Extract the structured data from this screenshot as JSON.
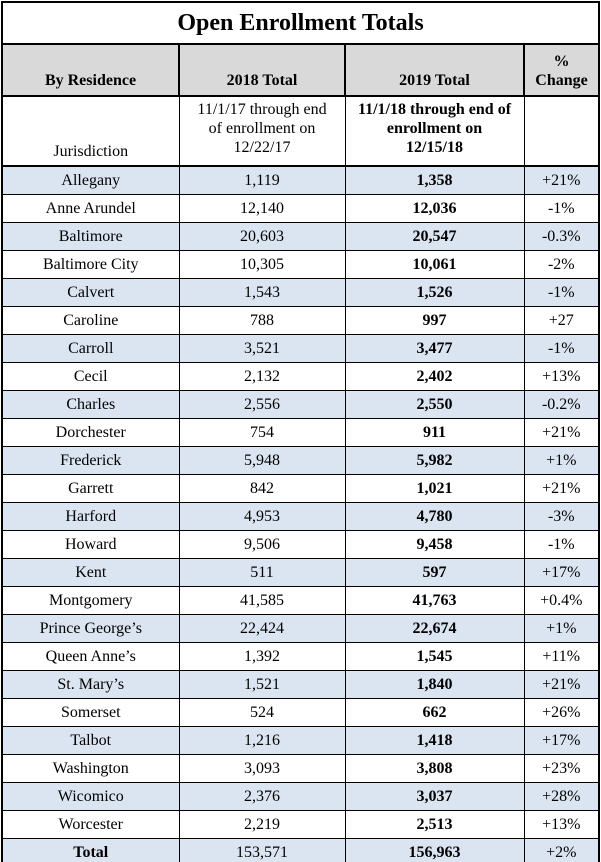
{
  "title": "Open Enrollment Totals",
  "columns": {
    "residence": "By Residence",
    "total_2018": "2018 Total",
    "total_2019": "2019 Total",
    "pct_change": "%\nChange"
  },
  "subheader": {
    "residence": "Jurisdiction",
    "total_2018": "11/1/17 through end\nof enrollment on\n12/22/17",
    "total_2019": "11/1/18 through end of\nenrollment on\n12/15/18",
    "pct_change": ""
  },
  "rows": [
    {
      "jurisdiction": "Allegany",
      "total_2018": "1,119",
      "total_2019": "1,358",
      "pct_change": "+21%"
    },
    {
      "jurisdiction": "Anne Arundel",
      "total_2018": "12,140",
      "total_2019": "12,036",
      "pct_change": "-1%"
    },
    {
      "jurisdiction": "Baltimore",
      "total_2018": "20,603",
      "total_2019": "20,547",
      "pct_change": "-0.3%"
    },
    {
      "jurisdiction": "Baltimore City",
      "total_2018": "10,305",
      "total_2019": "10,061",
      "pct_change": "-2%"
    },
    {
      "jurisdiction": "Calvert",
      "total_2018": "1,543",
      "total_2019": "1,526",
      "pct_change": "-1%"
    },
    {
      "jurisdiction": "Caroline",
      "total_2018": "788",
      "total_2019": "997",
      "pct_change": "+27"
    },
    {
      "jurisdiction": "Carroll",
      "total_2018": "3,521",
      "total_2019": "3,477",
      "pct_change": "-1%"
    },
    {
      "jurisdiction": "Cecil",
      "total_2018": "2,132",
      "total_2019": "2,402",
      "pct_change": "+13%"
    },
    {
      "jurisdiction": "Charles",
      "total_2018": "2,556",
      "total_2019": "2,550",
      "pct_change": "-0.2%"
    },
    {
      "jurisdiction": "Dorchester",
      "total_2018": "754",
      "total_2019": "911",
      "pct_change": "+21%"
    },
    {
      "jurisdiction": "Frederick",
      "total_2018": "5,948",
      "total_2019": "5,982",
      "pct_change": "+1%"
    },
    {
      "jurisdiction": "Garrett",
      "total_2018": "842",
      "total_2019": "1,021",
      "pct_change": "+21%"
    },
    {
      "jurisdiction": "Harford",
      "total_2018": "4,953",
      "total_2019": "4,780",
      "pct_change": "-3%"
    },
    {
      "jurisdiction": "Howard",
      "total_2018": "9,506",
      "total_2019": "9,458",
      "pct_change": "-1%"
    },
    {
      "jurisdiction": "Kent",
      "total_2018": "511",
      "total_2019": "597",
      "pct_change": "+17%"
    },
    {
      "jurisdiction": "Montgomery",
      "total_2018": "41,585",
      "total_2019": "41,763",
      "pct_change": "+0.4%"
    },
    {
      "jurisdiction": "Prince George’s",
      "total_2018": "22,424",
      "total_2019": "22,674",
      "pct_change": "+1%"
    },
    {
      "jurisdiction": "Queen Anne’s",
      "total_2018": "1,392",
      "total_2019": "1,545",
      "pct_change": "+11%"
    },
    {
      "jurisdiction": "St. Mary’s",
      "total_2018": "1,521",
      "total_2019": "1,840",
      "pct_change": "+21%"
    },
    {
      "jurisdiction": "Somerset",
      "total_2018": "524",
      "total_2019": "662",
      "pct_change": "+26%"
    },
    {
      "jurisdiction": "Talbot",
      "total_2018": "1,216",
      "total_2019": "1,418",
      "pct_change": "+17%"
    },
    {
      "jurisdiction": "Washington",
      "total_2018": "3,093",
      "total_2019": "3,808",
      "pct_change": "+23%"
    },
    {
      "jurisdiction": "Wicomico",
      "total_2018": "2,376",
      "total_2019": "3,037",
      "pct_change": "+28%"
    },
    {
      "jurisdiction": "Worcester",
      "total_2018": "2,219",
      "total_2019": "2,513",
      "pct_change": "+13%"
    }
  ],
  "total_row": {
    "jurisdiction": "Total",
    "total_2018": "153,571",
    "total_2019": "156,963",
    "pct_change": "+2%"
  },
  "colors": {
    "header_bg": "#d9d9d9",
    "band_bg": "#dbe5f1",
    "border": "#000000",
    "text": "#000000"
  }
}
